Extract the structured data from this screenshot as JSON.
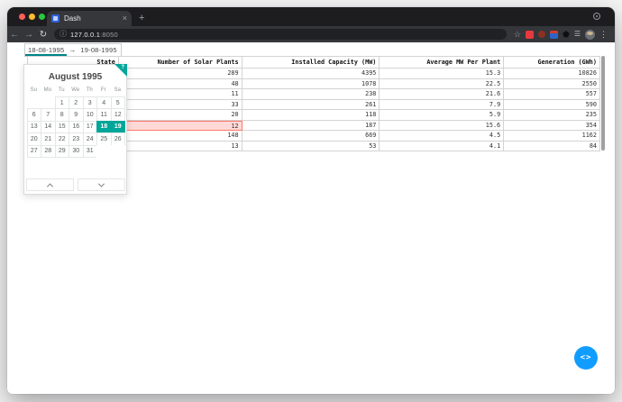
{
  "browser": {
    "tab_title": "Dash",
    "url_host": "127.0.0.1",
    "url_port": ":8050"
  },
  "icons": {
    "back_arrow": "←",
    "forward_arrow": "→",
    "reload": "↻",
    "info": "ⓘ",
    "bookmark_star": "☆",
    "extensions_puzzle": "⬟",
    "grey_extension": "☰",
    "overflow_menu": "⋮",
    "close_tab": "×",
    "new_tab": "+",
    "keyboard_shortcuts_help": "?",
    "debug_toggle": "<>"
  },
  "datepicker": {
    "start_date": "18-08-1995",
    "end_date": "19-08-1995",
    "arrow": "→"
  },
  "calendar": {
    "month_title": "August 1995",
    "weekdays": [
      "Su",
      "Mo",
      "Tu",
      "We",
      "Th",
      "Fr",
      "Sa"
    ],
    "weeks": [
      [
        "",
        "",
        "1",
        "2",
        "3",
        "4",
        "5"
      ],
      [
        "6",
        "7",
        "8",
        "9",
        "10",
        "11",
        "12"
      ],
      [
        "13",
        "14",
        "15",
        "16",
        "17",
        "18",
        "19"
      ],
      [
        "20",
        "21",
        "22",
        "23",
        "24",
        "25",
        "26"
      ],
      [
        "27",
        "28",
        "29",
        "30",
        "31",
        "",
        ""
      ]
    ],
    "selected_days": [
      "18",
      "19"
    ]
  },
  "table": {
    "columns": [
      "State",
      "Number of Solar Plants",
      "Installed Capacity (MW)",
      "Average MW Per Plant",
      "Generation (GWh)"
    ],
    "rows": [
      [
        "",
        "289",
        "4395",
        "15.3",
        "10826"
      ],
      [
        "",
        "48",
        "1078",
        "22.5",
        "2550"
      ],
      [
        "",
        "11",
        "238",
        "21.6",
        "557"
      ],
      [
        "",
        "33",
        "261",
        "7.9",
        "590"
      ],
      [
        "",
        "20",
        "118",
        "5.9",
        "235"
      ],
      [
        "",
        "12",
        "187",
        "15.6",
        "354"
      ],
      [
        "",
        "148",
        "669",
        "4.5",
        "1162"
      ],
      [
        "",
        "13",
        "53",
        "4.1",
        "84"
      ]
    ],
    "active_cell": {
      "row": 5,
      "col": 1
    }
  },
  "colors": {
    "accent_teal": "#00a699",
    "focus_underline": "#008489",
    "selected_cell_bg": "#ffd9d7",
    "selected_cell_border": "#ff4136",
    "debug_blue": "#119dff"
  }
}
